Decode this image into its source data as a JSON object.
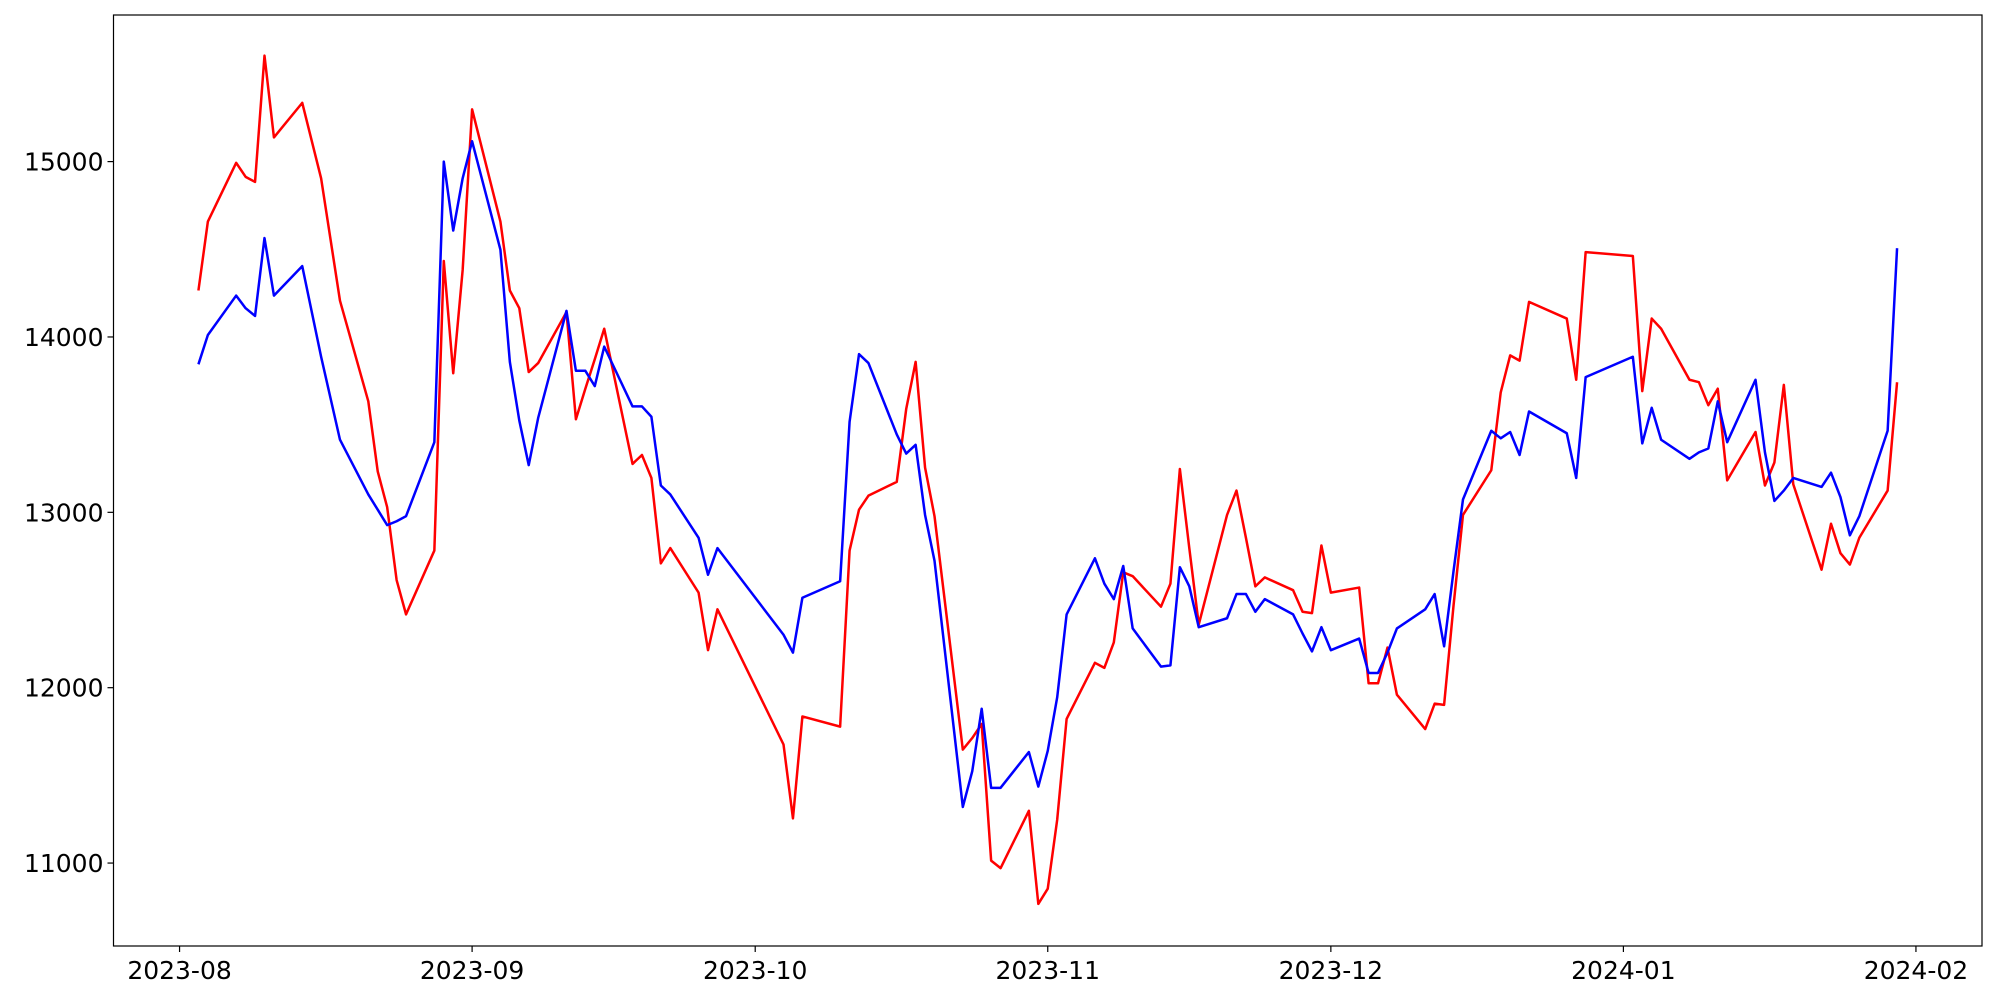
{
  "chart_data": {
    "type": "line",
    "x": [
      2,
      3,
      6,
      7,
      8,
      9,
      10,
      13,
      15,
      17,
      20,
      21,
      22,
      23,
      24,
      27,
      28,
      29,
      30,
      31,
      34,
      35,
      36,
      37,
      38,
      41,
      42,
      43,
      44,
      45,
      48,
      49,
      50,
      51,
      52,
      55,
      56,
      57,
      64,
      65,
      66,
      70,
      71,
      72,
      73,
      76,
      77,
      78,
      79,
      80,
      83,
      84,
      85,
      86,
      87,
      90,
      91,
      92,
      93,
      94,
      97,
      98,
      99,
      100,
      101,
      104,
      105,
      106,
      107,
      108,
      111,
      112,
      113,
      114,
      115,
      118,
      119,
      120,
      121,
      122,
      125,
      126,
      127,
      128,
      129,
      132,
      133,
      134,
      135,
      136,
      139,
      140,
      141,
      142,
      143,
      147,
      148,
      149,
      154,
      155,
      156,
      157,
      160,
      161,
      162,
      163,
      164,
      167,
      168,
      169,
      170,
      171,
      174,
      175,
      176,
      177,
      178,
      181,
      182
    ],
    "series": [
      {
        "color": "#ff0000",
        "values": [
          14265,
          14658,
          14993,
          14913,
          14884,
          15604,
          15138,
          15335,
          14905,
          14207,
          13633,
          13233,
          13029,
          12614,
          12418,
          12782,
          14433,
          13793,
          14382,
          15298,
          14658,
          14265,
          14164,
          13800,
          13851,
          14142,
          13531,
          13705,
          13873,
          14047,
          13276,
          13327,
          13196,
          12709,
          12796,
          12542,
          12214,
          12447,
          11676,
          11255,
          11836,
          11778,
          12782,
          13015,
          13095,
          13174,
          13589,
          13858,
          13255,
          12978,
          11647,
          11713,
          11793,
          11014,
          10971,
          11298,
          10767,
          10854,
          11247,
          11822,
          12142,
          12113,
          12258,
          12658,
          12636,
          12462,
          12593,
          13247,
          12796,
          12360,
          12985,
          13124,
          12855,
          12578,
          12629,
          12556,
          12433,
          12425,
          12811,
          12542,
          12571,
          12025,
          12025,
          12229,
          11960,
          11764,
          11909,
          11902,
          12469,
          12985,
          13240,
          13684,
          13895,
          13865,
          14200,
          14105,
          13756,
          14484,
          14462,
          13691,
          14105,
          14047,
          13756,
          13742,
          13611,
          13705,
          13182,
          13458,
          13153,
          13284,
          13727,
          13160,
          12673,
          12935,
          12767,
          12702,
          12855,
          13124,
          13742
        ]
      },
      {
        "color": "#0000ff",
        "values": [
          13844,
          14011,
          14236,
          14164,
          14120,
          14564,
          14236,
          14404,
          13887,
          13414,
          13102,
          13015,
          12927,
          12949,
          12978,
          13400,
          15000,
          14607,
          14905,
          15116,
          14498,
          13858,
          13524,
          13269,
          13538,
          14149,
          13807,
          13807,
          13720,
          13945,
          13604,
          13604,
          13545,
          13153,
          13102,
          12855,
          12644,
          12796,
          12302,
          12200,
          12513,
          12607,
          13516,
          13902,
          13851,
          13444,
          13335,
          13385,
          12985,
          12724,
          11320,
          11524,
          11880,
          11429,
          11429,
          11633,
          11436,
          11640,
          11945,
          12418,
          12738,
          12593,
          12505,
          12694,
          12338,
          12120,
          12127,
          12687,
          12578,
          12345,
          12396,
          12534,
          12534,
          12433,
          12505,
          12418,
          12309,
          12207,
          12345,
          12214,
          12280,
          12084,
          12084,
          12200,
          12338,
          12447,
          12534,
          12236,
          12665,
          13073,
          13465,
          13422,
          13458,
          13327,
          13575,
          13451,
          13196,
          13771,
          13887,
          13393,
          13596,
          13414,
          13305,
          13342,
          13364,
          13633,
          13400,
          13756,
          13342,
          13065,
          13124,
          13196,
          13145,
          13226,
          13087,
          12869,
          12978,
          13465,
          14506
        ]
      }
    ],
    "xlim": [
      -7,
      191
    ],
    "xticks": [
      {
        "value": 0,
        "label": "2023-08"
      },
      {
        "value": 31,
        "label": "2023-09"
      },
      {
        "value": 61,
        "label": "2023-10"
      },
      {
        "value": 92,
        "label": "2023-11"
      },
      {
        "value": 122,
        "label": "2023-12"
      },
      {
        "value": 153,
        "label": "2024-01"
      },
      {
        "value": 184,
        "label": "2024-02"
      }
    ],
    "ylim": [
      10527,
      15836
    ],
    "yticks": [
      11000,
      12000,
      13000,
      14000,
      15000
    ],
    "grid": false
  }
}
